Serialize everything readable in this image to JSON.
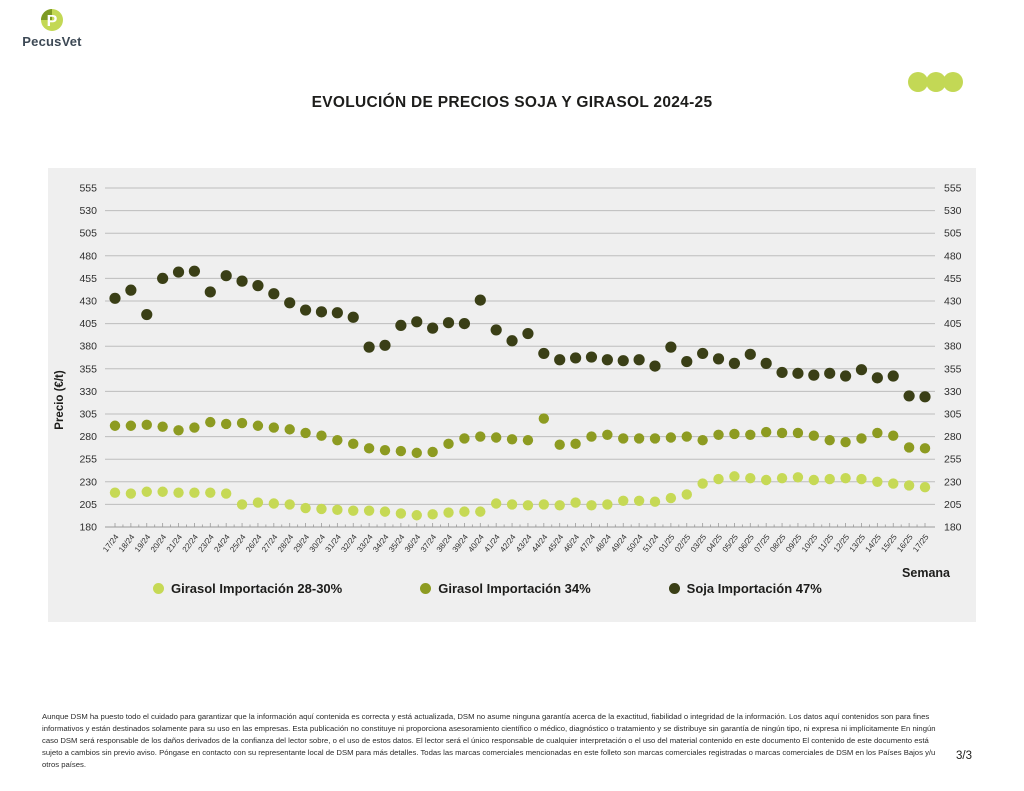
{
  "header": {
    "logo_text": "PecusVet",
    "title": "EVOLUCIÓN DE PRECIOS SOJA Y GIRASOL 2024-25"
  },
  "colors": {
    "accent_lime": "#c3d855",
    "panel_bg": "#efefef",
    "gridline": "#bdbdbd",
    "axis_text": "#2e2e2e"
  },
  "chart_data": {
    "type": "scatter",
    "title": "EVOLUCIÓN DE PRECIOS SOJA Y GIRASOL 2024-25",
    "xlabel": "Semana",
    "ylabel": "Precio (€/t)",
    "ylim": [
      180,
      555
    ],
    "ytick_step": 25,
    "grid": true,
    "legend_position": "bottom",
    "categories": [
      "17/24",
      "18/24",
      "19/24",
      "20/24",
      "21/24",
      "22/24",
      "23/24",
      "24/24",
      "25/24",
      "26/24",
      "27/24",
      "28/24",
      "29/24",
      "30/24",
      "31/24",
      "32/24",
      "33/24",
      "34/24",
      "35/24",
      "36/24",
      "37/24",
      "38/24",
      "39/24",
      "40/24",
      "41/24",
      "42/24",
      "43/24",
      "44/24",
      "45/24",
      "46/24",
      "47/24",
      "48/24",
      "49/24",
      "50/24",
      "51/24",
      "01/25",
      "02/25",
      "03/25",
      "04/25",
      "05/25",
      "06/25",
      "07/25",
      "08/25",
      "09/25",
      "10/25",
      "11/25",
      "12/25",
      "13/25",
      "14/25",
      "15/25",
      "16/25",
      "17/25"
    ],
    "series": [
      {
        "name": "Girasol Importación 28-30%",
        "color": "#c6d955",
        "values": [
          218,
          217,
          219,
          219,
          218,
          218,
          218,
          217,
          205,
          207,
          206,
          205,
          201,
          200,
          199,
          198,
          198,
          197,
          195,
          193,
          194,
          196,
          197,
          197,
          206,
          205,
          204,
          205,
          204,
          207,
          204,
          205,
          209,
          209,
          208,
          212,
          216,
          228,
          233,
          236,
          234,
          232,
          234,
          235,
          232,
          233,
          234,
          233,
          230,
          228,
          226,
          224
        ]
      },
      {
        "name": "Girasol Importación 34%",
        "color": "#8d9b21",
        "values": [
          292,
          292,
          293,
          291,
          287,
          290,
          296,
          294,
          295,
          292,
          290,
          288,
          284,
          281,
          276,
          272,
          267,
          265,
          264,
          262,
          263,
          272,
          278,
          280,
          279,
          277,
          276,
          300,
          271,
          272,
          280,
          282,
          278,
          278,
          278,
          279,
          280,
          276,
          282,
          283,
          282,
          285,
          284,
          284,
          281,
          276,
          274,
          278,
          284,
          281,
          268,
          267
        ]
      },
      {
        "name": "Soja Importación 47%",
        "color": "#3a3f16",
        "values": [
          433,
          442,
          415,
          455,
          462,
          463,
          440,
          458,
          452,
          447,
          438,
          428,
          420,
          418,
          417,
          412,
          379,
          381,
          403,
          407,
          400,
          406,
          405,
          431,
          398,
          386,
          394,
          372,
          365,
          367,
          368,
          365,
          364,
          365,
          358,
          379,
          363,
          372,
          366,
          361,
          371,
          361,
          351,
          350,
          348,
          350,
          347,
          354,
          345,
          347,
          325,
          324
        ]
      }
    ]
  },
  "footer": {
    "disclaimer": "Aunque DSM ha puesto todo el cuidado para garantizar que la información aquí contenida es correcta y está actualizada, DSM no asume ninguna garantía acerca de la exactitud, fiabilidad o integridad de la información. Los datos aquí contenidos son para fines informativos y están destinados solamente para su uso en las empresas. Esta publicación no constituye ni proporciona asesoramiento científico o médico, diagnóstico o tratamiento y se distribuye sin garantía de ningún tipo, ni expresa ni implícitamente En ningún caso DSM será responsable de los daños derivados de la confianza del lector sobre, o el uso de estos datos. El lector será el único responsable de cualquier interpretación o el uso del material contenido en este documento El contenido de este documento está sujeto a cambios sin previo aviso. Póngase en contacto con su representante local de DSM para más detalles. Todas las marcas comerciales mencionadas en este folleto son marcas comerciales registradas o marcas comerciales de DSM en los Países Bajos y/u otros países.",
    "page": "3/3"
  }
}
